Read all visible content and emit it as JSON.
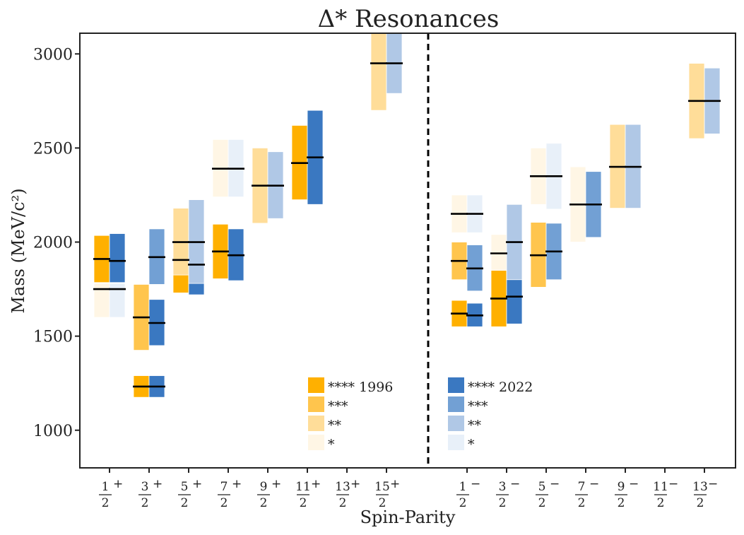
{
  "chart_data": {
    "type": "bar",
    "title": "Δ* Resonances",
    "xlabel": "Spin-Parity",
    "ylabel": "Mass (MeV/c²)",
    "ylim": [
      800,
      3110
    ],
    "yticks": [
      1000,
      1500,
      2000,
      2500,
      3000
    ],
    "grid": false,
    "categories": [
      {
        "num": "1",
        "den": "2",
        "parity": "+"
      },
      {
        "num": "3",
        "den": "2",
        "parity": "+"
      },
      {
        "num": "5",
        "den": "2",
        "parity": "+"
      },
      {
        "num": "7",
        "den": "2",
        "parity": "+"
      },
      {
        "num": "9",
        "den": "2",
        "parity": "+"
      },
      {
        "num": "11",
        "den": "2",
        "parity": "+"
      },
      {
        "num": "13",
        "den": "2",
        "parity": "+"
      },
      {
        "num": "15",
        "den": "2",
        "parity": "+"
      },
      {
        "num": "1",
        "den": "2",
        "parity": "−"
      },
      {
        "num": "3",
        "den": "2",
        "parity": "−"
      },
      {
        "num": "5",
        "den": "2",
        "parity": "−"
      },
      {
        "num": "7",
        "den": "2",
        "parity": "−"
      },
      {
        "num": "9",
        "den": "2",
        "parity": "−"
      },
      {
        "num": "11",
        "den": "2",
        "parity": "−"
      },
      {
        "num": "13",
        "den": "2",
        "parity": "−"
      }
    ],
    "series": [
      {
        "name": "1996",
        "colors": {
          "4": "#ffb000",
          "3": "#ffc54d",
          "2": "#ffdd99",
          "1": "#fff6e5"
        },
        "resonances": [
          {
            "cat": 0,
            "mass": 1750,
            "low": 1600,
            "high": 1780,
            "stars": 1
          },
          {
            "cat": 0,
            "mass": 1910,
            "low": 1785,
            "high": 2035,
            "stars": 4
          },
          {
            "cat": 1,
            "mass": 1232,
            "low": 1175,
            "high": 1290,
            "stars": 4
          },
          {
            "cat": 1,
            "mass": 1600,
            "low": 1425,
            "high": 1775,
            "stars": 3
          },
          {
            "cat": 2,
            "mass": 1905,
            "low": 1730,
            "high": 2080,
            "stars": 4
          },
          {
            "cat": 2,
            "mass": 2000,
            "low": 1825,
            "high": 2180,
            "stars": 2
          },
          {
            "cat": 3,
            "mass": 1950,
            "low": 1805,
            "high": 2095,
            "stars": 4
          },
          {
            "cat": 3,
            "mass": 2390,
            "low": 2240,
            "high": 2545,
            "stars": 1
          },
          {
            "cat": 4,
            "mass": 2300,
            "low": 2100,
            "high": 2500,
            "stars": 2
          },
          {
            "cat": 5,
            "mass": 2420,
            "low": 2225,
            "high": 2620,
            "stars": 4
          },
          {
            "cat": 7,
            "mass": 2950,
            "low": 2700,
            "high": 3110,
            "stars": 2
          },
          {
            "cat": 8,
            "mass": 1620,
            "low": 1550,
            "high": 1690,
            "stars": 4
          },
          {
            "cat": 8,
            "mass": 1900,
            "low": 1800,
            "high": 2000,
            "stars": 3
          },
          {
            "cat": 8,
            "mass": 2150,
            "low": 2050,
            "high": 2250,
            "stars": 1
          },
          {
            "cat": 9,
            "mass": 1700,
            "low": 1550,
            "high": 1850,
            "stars": 4
          },
          {
            "cat": 9,
            "mass": 1940,
            "low": 1850,
            "high": 2040,
            "stars": 1
          },
          {
            "cat": 10,
            "mass": 1930,
            "low": 1760,
            "high": 2105,
            "stars": 3
          },
          {
            "cat": 10,
            "mass": 2350,
            "low": 2200,
            "high": 2500,
            "stars": 1
          },
          {
            "cat": 11,
            "mass": 2200,
            "low": 2000,
            "high": 2400,
            "stars": 1
          },
          {
            "cat": 12,
            "mass": 2400,
            "low": 2180,
            "high": 2625,
            "stars": 2
          },
          {
            "cat": 14,
            "mass": 2750,
            "low": 2550,
            "high": 2950,
            "stars": 2
          }
        ]
      },
      {
        "name": "2022",
        "colors": {
          "4": "#3a78c1",
          "3": "#72a0d4",
          "2": "#b0c8e6",
          "1": "#e8f0f9"
        },
        "resonances": [
          {
            "cat": 0,
            "mass": 1750,
            "low": 1600,
            "high": 1780,
            "stars": 1
          },
          {
            "cat": 0,
            "mass": 1900,
            "low": 1785,
            "high": 2045,
            "stars": 4
          },
          {
            "cat": 1,
            "mass": 1232,
            "low": 1175,
            "high": 1290,
            "stars": 4
          },
          {
            "cat": 1,
            "mass": 1570,
            "low": 1450,
            "high": 1695,
            "stars": 4
          },
          {
            "cat": 1,
            "mass": 1920,
            "low": 1775,
            "high": 2070,
            "stars": 3
          },
          {
            "cat": 2,
            "mass": 1880,
            "low": 1720,
            "high": 2045,
            "stars": 4
          },
          {
            "cat": 2,
            "mass": 2000,
            "low": 1780,
            "high": 2225,
            "stars": 2
          },
          {
            "cat": 3,
            "mass": 1930,
            "low": 1795,
            "high": 2070,
            "stars": 4
          },
          {
            "cat": 3,
            "mass": 2390,
            "low": 2240,
            "high": 2545,
            "stars": 1
          },
          {
            "cat": 4,
            "mass": 2300,
            "low": 2125,
            "high": 2480,
            "stars": 2
          },
          {
            "cat": 5,
            "mass": 2450,
            "low": 2200,
            "high": 2700,
            "stars": 4
          },
          {
            "cat": 7,
            "mass": 2950,
            "low": 2790,
            "high": 3110,
            "stars": 2
          },
          {
            "cat": 8,
            "mass": 1610,
            "low": 1550,
            "high": 1675,
            "stars": 4
          },
          {
            "cat": 8,
            "mass": 1860,
            "low": 1740,
            "high": 1985,
            "stars": 3
          },
          {
            "cat": 8,
            "mass": 2150,
            "low": 2050,
            "high": 2250,
            "stars": 1
          },
          {
            "cat": 9,
            "mass": 1710,
            "low": 1565,
            "high": 1860,
            "stars": 4
          },
          {
            "cat": 9,
            "mass": 2000,
            "low": 1800,
            "high": 2200,
            "stars": 2
          },
          {
            "cat": 10,
            "mass": 1950,
            "low": 1800,
            "high": 2100,
            "stars": 3
          },
          {
            "cat": 10,
            "mass": 2350,
            "low": 2175,
            "high": 2525,
            "stars": 1
          },
          {
            "cat": 11,
            "mass": 2200,
            "low": 2025,
            "high": 2375,
            "stars": 3
          },
          {
            "cat": 12,
            "mass": 2400,
            "low": 2180,
            "high": 2625,
            "stars": 2
          },
          {
            "cat": 14,
            "mass": 2750,
            "low": 2575,
            "high": 2925,
            "stars": 2
          }
        ]
      }
    ],
    "legend": {
      "placement": "bottom-center",
      "groups": [
        {
          "series": "1996",
          "entries": [
            {
              "stars": 4,
              "label": "**** 1996"
            },
            {
              "stars": 3,
              "label": "***"
            },
            {
              "stars": 2,
              "label": "**"
            },
            {
              "stars": 1,
              "label": "*"
            }
          ]
        },
        {
          "series": "2022",
          "entries": [
            {
              "stars": 4,
              "label": "**** 2022"
            },
            {
              "stars": 3,
              "label": "***"
            },
            {
              "stars": 2,
              "label": "**"
            },
            {
              "stars": 1,
              "label": "*"
            }
          ]
        }
      ]
    },
    "divider_after_category": 7
  }
}
